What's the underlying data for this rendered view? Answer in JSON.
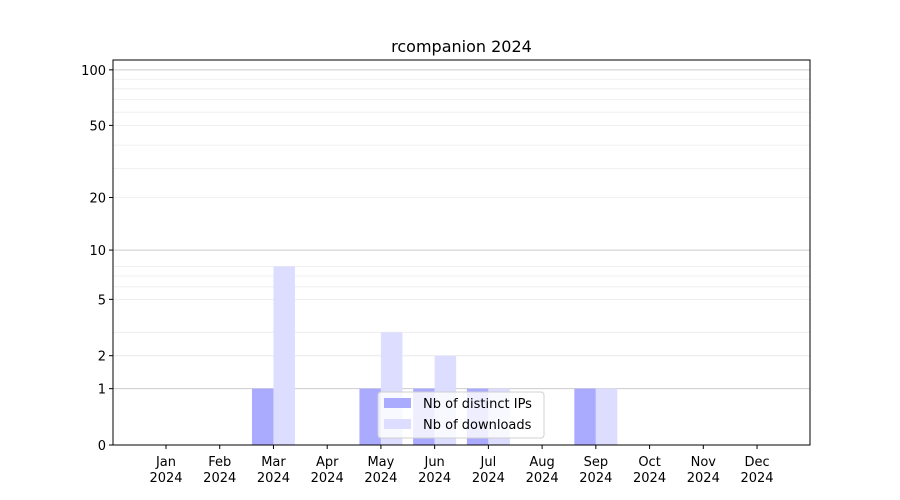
{
  "chart_data": {
    "type": "bar",
    "title": "rcompanion 2024",
    "xlabel": "",
    "ylabel": "",
    "yscale": "symlog (log of value+1)",
    "ylim": [
      0,
      113
    ],
    "yticks": [
      0,
      1,
      2,
      5,
      10,
      20,
      50,
      100
    ],
    "grid": true,
    "legend_position": "lower-center",
    "categories": [
      "Jan\n2024",
      "Feb\n2024",
      "Mar\n2024",
      "Apr\n2024",
      "May\n2024",
      "Jun\n2024",
      "Jul\n2024",
      "Aug\n2024",
      "Sep\n2024",
      "Oct\n2024",
      "Nov\n2024",
      "Dec\n2024"
    ],
    "series": [
      {
        "name": "Nb of distinct IPs",
        "color": "#aaaaff",
        "values": [
          0,
          0,
          1,
          0,
          1,
          1,
          1,
          0,
          1,
          0,
          0,
          0
        ]
      },
      {
        "name": "Nb of downloads",
        "color": "#ddddff",
        "values": [
          0,
          0,
          8,
          0,
          3,
          2,
          1,
          0,
          1,
          0,
          0,
          0
        ]
      }
    ]
  }
}
